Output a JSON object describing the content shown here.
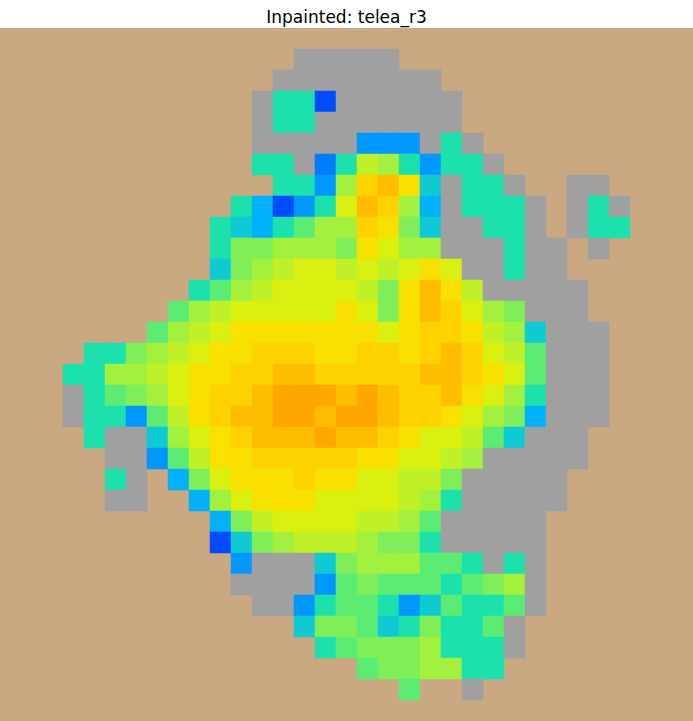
{
  "chart_data": {
    "type": "heatmap",
    "title": "Inpainted: telea_r3",
    "tick_labels": false,
    "zlim": [
      0,
      1
    ],
    "cells": [
      [
        null,
        null,
        null,
        null,
        null,
        null,
        null,
        null,
        null,
        null,
        null,
        null,
        null,
        null,
        null,
        null,
        null,
        null,
        null,
        null,
        null,
        null,
        null,
        null,
        null,
        null,
        null,
        null,
        null,
        null,
        null,
        null,
        null
      ],
      [
        null,
        null,
        null,
        null,
        null,
        null,
        null,
        null,
        null,
        null,
        null,
        null,
        null,
        null,
        -1,
        -1,
        -1,
        -1,
        -1,
        null,
        null,
        null,
        null,
        null,
        null,
        null,
        null,
        null,
        null,
        null,
        null,
        null,
        null
      ],
      [
        null,
        null,
        null,
        null,
        null,
        null,
        null,
        null,
        null,
        null,
        null,
        null,
        null,
        -1,
        -1,
        -1,
        -1,
        -1,
        -1,
        -1,
        -1,
        null,
        null,
        null,
        null,
        null,
        null,
        null,
        null,
        null,
        null,
        null,
        null
      ],
      [
        null,
        null,
        null,
        null,
        null,
        null,
        null,
        null,
        null,
        null,
        null,
        null,
        -1,
        0.45,
        0.45,
        0.2,
        -1,
        -1,
        -1,
        -1,
        -1,
        -1,
        null,
        null,
        null,
        null,
        null,
        null,
        null,
        null,
        null,
        null,
        null
      ],
      [
        null,
        null,
        null,
        null,
        null,
        null,
        null,
        null,
        null,
        null,
        null,
        null,
        -1,
        0.45,
        0.45,
        -1,
        -1,
        -1,
        -1,
        -1,
        -1,
        -1,
        null,
        null,
        null,
        null,
        null,
        null,
        null,
        null,
        null,
        null,
        null
      ],
      [
        null,
        null,
        null,
        null,
        null,
        null,
        null,
        null,
        null,
        null,
        null,
        null,
        -1,
        -1,
        -1,
        -1,
        -1,
        0.3,
        0.3,
        0.3,
        -1,
        0.45,
        -1,
        null,
        null,
        null,
        null,
        null,
        null,
        null,
        null,
        null,
        null
      ],
      [
        null,
        null,
        null,
        null,
        null,
        null,
        null,
        null,
        null,
        null,
        null,
        null,
        0.45,
        0.45,
        -1,
        0.25,
        0.45,
        0.65,
        0.6,
        0.45,
        0.3,
        0.45,
        0.45,
        -1,
        null,
        null,
        null,
        null,
        null,
        null,
        null,
        null,
        null
      ],
      [
        null,
        null,
        null,
        null,
        null,
        null,
        null,
        null,
        null,
        null,
        null,
        null,
        null,
        0.45,
        0.45,
        0.3,
        0.6,
        0.8,
        0.85,
        0.75,
        0.4,
        -1,
        0.45,
        0.45,
        -1,
        null,
        null,
        -1,
        -1,
        null,
        null,
        null,
        null
      ],
      [
        null,
        null,
        null,
        null,
        null,
        null,
        null,
        null,
        null,
        null,
        null,
        0.45,
        0.35,
        0.2,
        0.3,
        0.45,
        0.7,
        0.85,
        0.8,
        0.6,
        0.35,
        -1,
        0.45,
        0.45,
        0.45,
        -1,
        null,
        -1,
        0.45,
        -1,
        null,
        null,
        null
      ],
      [
        null,
        null,
        null,
        null,
        null,
        null,
        null,
        null,
        null,
        null,
        0.45,
        0.4,
        0.35,
        0.45,
        0.5,
        0.6,
        0.6,
        0.8,
        0.75,
        0.55,
        0.4,
        -1,
        -1,
        0.45,
        0.45,
        -1,
        null,
        -1,
        0.45,
        0.45,
        null,
        null,
        null
      ],
      [
        null,
        null,
        null,
        null,
        null,
        null,
        null,
        null,
        null,
        null,
        0.45,
        0.55,
        0.55,
        0.6,
        0.6,
        0.6,
        0.55,
        0.75,
        0.7,
        0.6,
        0.6,
        -1,
        -1,
        -1,
        0.45,
        -1,
        -1,
        null,
        -1,
        null,
        null,
        null,
        null
      ],
      [
        null,
        null,
        null,
        null,
        null,
        null,
        null,
        null,
        null,
        null,
        0.4,
        0.55,
        0.6,
        0.65,
        0.7,
        0.7,
        0.65,
        0.7,
        0.65,
        0.7,
        0.75,
        0.7,
        -1,
        -1,
        0.45,
        -1,
        -1,
        null,
        null,
        null,
        null,
        null,
        null
      ],
      [
        null,
        null,
        null,
        null,
        null,
        null,
        null,
        null,
        null,
        0.45,
        0.5,
        0.6,
        0.65,
        0.7,
        0.7,
        0.7,
        0.7,
        0.65,
        0.55,
        0.75,
        0.85,
        0.75,
        0.65,
        -1,
        -1,
        -1,
        -1,
        -1,
        null,
        null,
        null,
        null,
        null
      ],
      [
        null,
        null,
        null,
        null,
        null,
        null,
        null,
        null,
        0.5,
        0.6,
        0.65,
        0.7,
        0.7,
        0.7,
        0.7,
        0.7,
        0.75,
        0.7,
        0.55,
        0.75,
        0.85,
        0.8,
        0.7,
        0.6,
        0.55,
        -1,
        -1,
        -1,
        null,
        null,
        null,
        null,
        null
      ],
      [
        null,
        null,
        null,
        null,
        null,
        null,
        null,
        0.5,
        0.6,
        0.65,
        0.7,
        0.75,
        0.75,
        0.75,
        0.75,
        0.75,
        0.75,
        0.75,
        0.7,
        0.75,
        0.8,
        0.8,
        0.75,
        0.65,
        0.6,
        0.4,
        -1,
        -1,
        -1,
        null,
        null,
        null,
        null
      ],
      [
        null,
        null,
        null,
        null,
        0.45,
        0.45,
        0.55,
        0.6,
        0.65,
        0.7,
        0.75,
        0.75,
        0.8,
        0.8,
        0.8,
        0.75,
        0.75,
        0.8,
        0.8,
        0.75,
        0.8,
        0.85,
        0.8,
        0.7,
        0.65,
        0.5,
        -1,
        -1,
        -1,
        null,
        null,
        null,
        null
      ],
      [
        null,
        null,
        null,
        0.45,
        0.45,
        0.6,
        0.6,
        0.65,
        0.7,
        0.75,
        0.75,
        0.8,
        0.8,
        0.85,
        0.85,
        0.8,
        0.8,
        0.8,
        0.8,
        0.8,
        0.85,
        0.85,
        0.8,
        0.75,
        0.7,
        0.5,
        -1,
        -1,
        -1,
        null,
        null,
        null,
        null
      ],
      [
        null,
        null,
        null,
        -1,
        0.45,
        0.5,
        0.55,
        0.6,
        0.7,
        0.75,
        0.8,
        0.8,
        0.85,
        0.9,
        0.9,
        0.9,
        0.85,
        0.9,
        0.85,
        0.8,
        0.8,
        0.85,
        0.75,
        0.7,
        0.6,
        0.45,
        -1,
        -1,
        -1,
        null,
        null,
        null,
        null
      ],
      [
        null,
        null,
        null,
        -1,
        0.45,
        0.45,
        0.3,
        0.5,
        0.65,
        0.75,
        0.8,
        0.85,
        0.85,
        0.9,
        0.9,
        0.85,
        0.9,
        0.9,
        0.85,
        0.8,
        0.8,
        0.75,
        0.7,
        0.6,
        0.55,
        0.35,
        -1,
        -1,
        -1,
        null,
        null,
        null,
        null
      ],
      [
        null,
        null,
        null,
        null,
        0.45,
        -1,
        -1,
        0.4,
        0.6,
        0.7,
        0.75,
        0.8,
        0.85,
        0.85,
        0.85,
        0.9,
        0.85,
        0.85,
        0.8,
        0.75,
        0.7,
        0.7,
        0.65,
        0.5,
        0.4,
        -1,
        -1,
        -1,
        null,
        null,
        null,
        null,
        null
      ],
      [
        null,
        null,
        null,
        null,
        null,
        -1,
        -1,
        0.3,
        0.5,
        0.65,
        0.75,
        0.75,
        0.8,
        0.8,
        0.8,
        0.8,
        0.8,
        0.75,
        0.75,
        0.7,
        0.7,
        0.65,
        0.6,
        -1,
        -1,
        -1,
        -1,
        -1,
        null,
        null,
        null,
        null,
        null
      ],
      [
        null,
        null,
        null,
        null,
        null,
        0.45,
        -1,
        null,
        0.35,
        0.55,
        0.7,
        0.75,
        0.75,
        0.75,
        0.8,
        0.75,
        0.75,
        0.7,
        0.7,
        0.65,
        0.65,
        0.55,
        -1,
        -1,
        -1,
        -1,
        -1,
        null,
        null,
        null,
        null,
        null,
        null
      ],
      [
        null,
        null,
        null,
        null,
        null,
        -1,
        -1,
        null,
        null,
        0.35,
        0.6,
        0.7,
        0.75,
        0.75,
        0.75,
        0.7,
        0.7,
        0.7,
        0.7,
        0.65,
        0.6,
        0.45,
        -1,
        -1,
        -1,
        -1,
        -1,
        null,
        null,
        null,
        null,
        null,
        null
      ],
      [
        null,
        null,
        null,
        null,
        null,
        null,
        null,
        null,
        null,
        null,
        0.35,
        0.55,
        0.65,
        0.7,
        0.7,
        0.7,
        0.7,
        0.65,
        0.65,
        0.6,
        0.5,
        -1,
        -1,
        -1,
        -1,
        -1,
        null,
        null,
        null,
        null,
        null,
        null,
        null
      ],
      [
        null,
        null,
        null,
        null,
        null,
        null,
        null,
        null,
        null,
        null,
        0.2,
        0.4,
        0.55,
        0.6,
        0.65,
        0.65,
        0.65,
        0.6,
        0.55,
        0.55,
        0.45,
        -1,
        -1,
        -1,
        -1,
        -1,
        null,
        null,
        null,
        null,
        null,
        null,
        null
      ],
      [
        null,
        null,
        null,
        null,
        null,
        null,
        null,
        null,
        null,
        null,
        null,
        0.3,
        -1,
        -1,
        -1,
        0.4,
        0.55,
        0.6,
        0.6,
        0.6,
        0.5,
        0.5,
        0.45,
        -1,
        0.45,
        -1,
        null,
        null,
        null,
        null,
        null,
        null,
        null
      ],
      [
        null,
        null,
        null,
        null,
        null,
        null,
        null,
        null,
        null,
        null,
        null,
        -1,
        -1,
        -1,
        -1,
        0.3,
        0.5,
        0.55,
        0.5,
        0.5,
        0.5,
        0.45,
        0.5,
        0.55,
        0.6,
        -1,
        null,
        null,
        null,
        null,
        null,
        null,
        null
      ],
      [
        null,
        null,
        null,
        null,
        null,
        null,
        null,
        null,
        null,
        null,
        null,
        null,
        -1,
        -1,
        0.3,
        0.45,
        0.5,
        0.5,
        0.45,
        0.3,
        0.4,
        0.5,
        0.45,
        0.45,
        0.5,
        -1,
        null,
        null,
        null,
        null,
        null,
        null,
        null
      ],
      [
        null,
        null,
        null,
        null,
        null,
        null,
        null,
        null,
        null,
        null,
        null,
        null,
        null,
        null,
        0.4,
        0.55,
        0.55,
        0.5,
        0.4,
        0.45,
        0.55,
        0.45,
        0.45,
        0.5,
        -1,
        null,
        null,
        null,
        null,
        null,
        null,
        null,
        null
      ],
      [
        null,
        null,
        null,
        null,
        null,
        null,
        null,
        null,
        null,
        null,
        null,
        null,
        null,
        null,
        null,
        0.45,
        0.5,
        0.55,
        0.55,
        0.55,
        0.6,
        0.45,
        0.45,
        0.45,
        -1,
        null,
        null,
        null,
        null,
        null,
        null,
        null,
        null
      ],
      [
        null,
        null,
        null,
        null,
        null,
        null,
        null,
        null,
        null,
        null,
        null,
        null,
        null,
        null,
        null,
        null,
        null,
        0.5,
        0.55,
        0.55,
        0.6,
        0.6,
        0.45,
        0.45,
        null,
        null,
        null,
        null,
        null,
        null,
        null,
        null,
        null
      ],
      [
        null,
        null,
        null,
        null,
        null,
        null,
        null,
        null,
        null,
        null,
        null,
        null,
        null,
        null,
        null,
        null,
        null,
        null,
        null,
        0.5,
        null,
        null,
        -1,
        null,
        null,
        null,
        null,
        null,
        null,
        null,
        null,
        null,
        null
      ],
      [
        null,
        null,
        null,
        null,
        null,
        null,
        null,
        null,
        null,
        null,
        null,
        null,
        null,
        null,
        null,
        null,
        null,
        null,
        null,
        null,
        null,
        null,
        null,
        null,
        null,
        null,
        null,
        null,
        null,
        null,
        null,
        null,
        null
      ]
    ]
  }
}
